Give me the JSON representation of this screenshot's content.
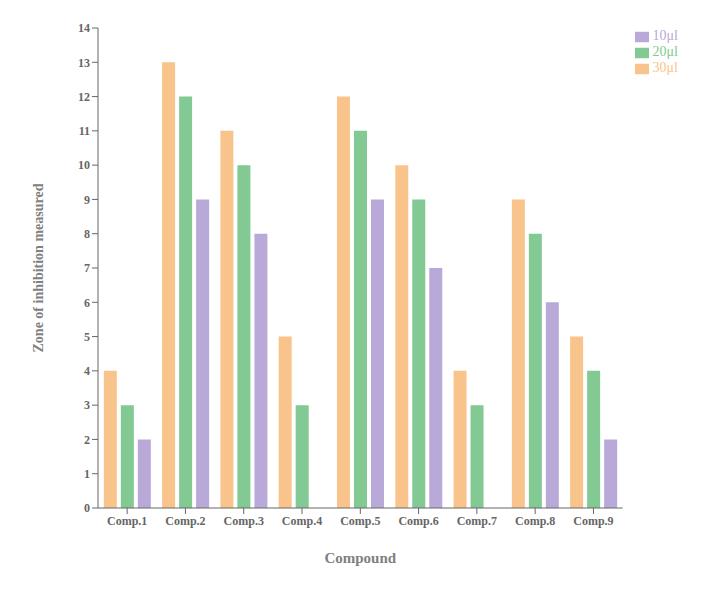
{
  "chart_data": {
    "type": "bar",
    "categories": [
      "Comp.1",
      "Comp.2",
      "Comp.3",
      "Comp.4",
      "Comp.5",
      "Comp.6",
      "Comp.7",
      "Comp.8",
      "Comp.9"
    ],
    "series": [
      {
        "name": "30μl",
        "color": "#F9C48C",
        "values": [
          4,
          13,
          11,
          5,
          12,
          10,
          4,
          9,
          5
        ]
      },
      {
        "name": "20μl",
        "color": "#82C993",
        "values": [
          3,
          12,
          10,
          3,
          11,
          9,
          3,
          8,
          4
        ]
      },
      {
        "name": "10μl",
        "color": "#B8A9D9",
        "values": [
          2,
          9,
          8,
          0,
          9,
          7,
          0,
          6,
          2
        ]
      }
    ],
    "xlabel": "Compound",
    "ylabel": "Zone of inhibition measured",
    "ylim": [
      0,
      14
    ],
    "yticks": [
      0,
      1,
      2,
      3,
      4,
      5,
      6,
      7,
      8,
      9,
      10,
      11,
      12,
      13,
      14
    ],
    "grid": false,
    "legend": "upper right"
  }
}
